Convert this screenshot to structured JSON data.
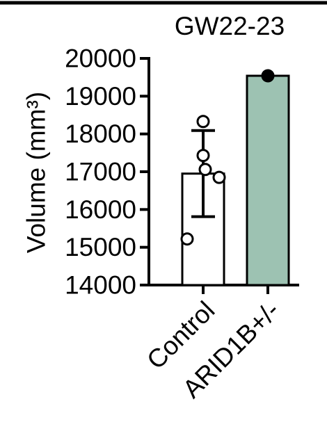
{
  "chart_data": {
    "type": "bar",
    "title": "GW22-23",
    "ylabel": "Volume (mm³)",
    "xlabel": "",
    "ylim": [
      14000,
      20000
    ],
    "yticks": [
      14000,
      15000,
      16000,
      17000,
      18000,
      19000,
      20000
    ],
    "categories": [
      "Control",
      "ARID1B+/-"
    ],
    "values": [
      16950,
      19540
    ],
    "error_sd": [
      1140,
      null
    ],
    "fill_colors": [
      "#ffffff",
      "#9dc2b2"
    ],
    "points": [
      {
        "category": "Control",
        "values": [
          18330,
          17430,
          17060,
          16850,
          15220
        ],
        "marker": "open-circle"
      },
      {
        "category": "ARID1B+/-",
        "values": [
          19540
        ],
        "marker": "filled-circle"
      }
    ],
    "grid": false,
    "legend": "none"
  }
}
